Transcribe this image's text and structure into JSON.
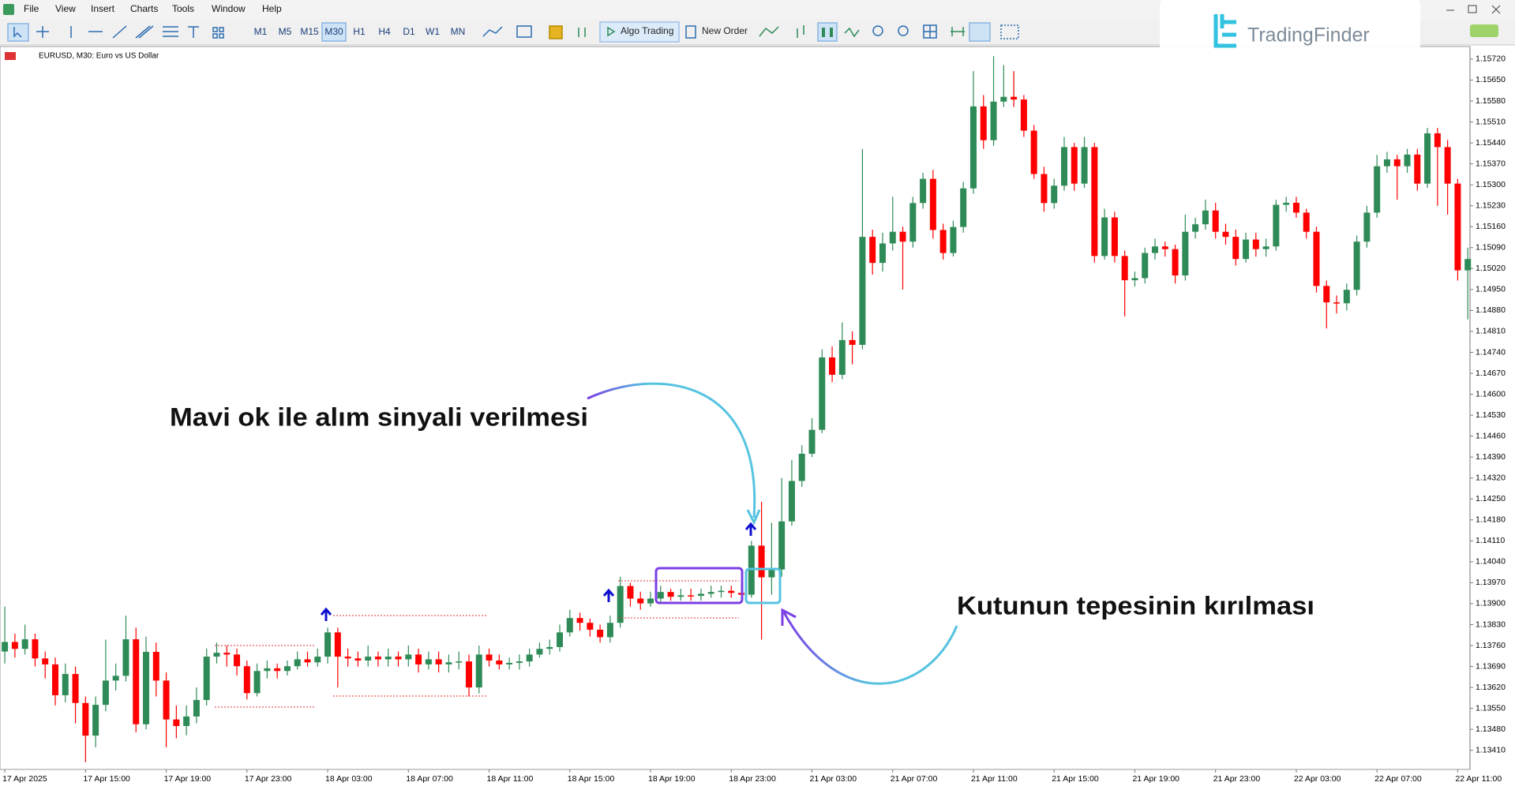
{
  "menu": [
    "File",
    "View",
    "Insert",
    "Charts",
    "Tools",
    "Window",
    "Help"
  ],
  "toolbar": {
    "timeframes": [
      "M1",
      "M5",
      "M15",
      "M30",
      "H1",
      "H4",
      "D1",
      "W1",
      "MN"
    ],
    "algo_trading": "Algo Trading",
    "new_order": "New Order"
  },
  "logo": "TradingFinder",
  "chart_data": {
    "type": "candlestick",
    "title": "EURUSD, M30:  Euro vs US Dollar",
    "annotations": [
      "Mavi ok ile alım sinyali verilmesi",
      "Kutunun tepesinin kırılması"
    ],
    "up_color": "#2e8b57",
    "down_color": "#ff0000",
    "grid": false,
    "ylim": [
      1.13346,
      1.15762
    ],
    "yticks": [
      {
        "value": 1.1572,
        "label": "1.15720"
      },
      {
        "value": 1.1565,
        "label": "1.15650"
      },
      {
        "value": 1.1558,
        "label": "1.15580"
      },
      {
        "value": 1.1551,
        "label": "1.15510"
      },
      {
        "value": 1.1544,
        "label": "1.15440"
      },
      {
        "value": 1.1537,
        "label": "1.15370"
      },
      {
        "value": 1.153,
        "label": "1.15300"
      },
      {
        "value": 1.1523,
        "label": "1.15230"
      },
      {
        "value": 1.1516,
        "label": "1.15160"
      },
      {
        "value": 1.1509,
        "label": "1.15090"
      },
      {
        "value": 1.1502,
        "label": "1.15020"
      },
      {
        "value": 1.1495,
        "label": "1.14950"
      },
      {
        "value": 1.1488,
        "label": "1.14880"
      },
      {
        "value": 1.1481,
        "label": "1.14810"
      },
      {
        "value": 1.1474,
        "label": "1.14740"
      },
      {
        "value": 1.1467,
        "label": "1.14670"
      },
      {
        "value": 1.146,
        "label": "1.14600"
      },
      {
        "value": 1.1453,
        "label": "1.14530"
      },
      {
        "value": 1.1446,
        "label": "1.14460"
      },
      {
        "value": 1.1439,
        "label": "1.14390"
      },
      {
        "value": 1.1432,
        "label": "1.14320"
      },
      {
        "value": 1.1425,
        "label": "1.14250"
      },
      {
        "value": 1.1418,
        "label": "1.14180"
      },
      {
        "value": 1.1411,
        "label": "1.14110"
      },
      {
        "value": 1.1404,
        "label": "1.14040"
      },
      {
        "value": 1.1397,
        "label": "1.13970"
      },
      {
        "value": 1.139,
        "label": "1.13900"
      },
      {
        "value": 1.1383,
        "label": "1.13830"
      },
      {
        "value": 1.1376,
        "label": "1.13760"
      },
      {
        "value": 1.1369,
        "label": "1.13690"
      },
      {
        "value": 1.1362,
        "label": "1.13620"
      },
      {
        "value": 1.1355,
        "label": "1.13550"
      },
      {
        "value": 1.1348,
        "label": "1.13480"
      },
      {
        "value": 1.1341,
        "label": "1.13410"
      }
    ],
    "categories": [
      "17 Apr 2025",
      null,
      null,
      null,
      null,
      null,
      null,
      null,
      "17 Apr 15:00",
      null,
      null,
      null,
      null,
      null,
      null,
      null,
      "17 Apr 19:00",
      null,
      null,
      null,
      null,
      null,
      null,
      null,
      "17 Apr 23:00",
      null,
      null,
      null,
      null,
      null,
      null,
      null,
      "18 Apr 03:00",
      null,
      null,
      null,
      null,
      null,
      null,
      null,
      "18 Apr 07:00",
      null,
      null,
      null,
      null,
      null,
      null,
      null,
      "18 Apr 11:00",
      null,
      null,
      null,
      null,
      null,
      null,
      null,
      "18 Apr 15:00",
      null,
      null,
      null,
      null,
      null,
      null,
      null,
      "18 Apr 19:00",
      null,
      null,
      null,
      null,
      null,
      null,
      null,
      "18 Apr 23:00",
      null,
      null,
      null,
      null,
      null,
      null,
      null,
      "21 Apr 03:00",
      null,
      null,
      null,
      null,
      null,
      null,
      null,
      "21 Apr 07:00",
      null,
      null,
      null,
      null,
      null,
      null,
      null,
      "21 Apr 11:00",
      null,
      null,
      null,
      null,
      null,
      null,
      null,
      "21 Apr 15:00",
      null,
      null,
      null,
      null,
      null,
      null,
      null,
      "21 Apr 19:00",
      null,
      null,
      null,
      null,
      null,
      null,
      null,
      "21 Apr 23:00",
      null,
      null,
      null,
      null,
      null,
      null,
      null,
      "22 Apr 03:00",
      null,
      null,
      null,
      null,
      null,
      null,
      null,
      "22 Apr 07:00",
      null,
      null,
      null,
      null,
      null,
      null,
      null,
      "22 Apr 11:00",
      null
    ],
    "open": [
      1.1374,
      1.13772,
      1.13749,
      1.13781,
      1.13717,
      1.13697,
      1.13594,
      1.13665,
      1.13568,
      1.13459,
      1.13562,
      1.13643,
      1.13659,
      1.13781,
      1.13497,
      1.13739,
      1.13643,
      1.13513,
      1.13491,
      1.13523,
      1.13578,
      1.13723,
      1.13736,
      1.1373,
      1.13691,
      1.13601,
      1.13675,
      1.13684,
      1.13675,
      1.13691,
      1.13714,
      1.13704,
      1.13723,
      1.13804,
      1.13723,
      1.13717,
      1.1371,
      1.13723,
      1.13714,
      1.13723,
      1.13714,
      1.1373,
      1.13697,
      1.13714,
      1.13697,
      1.13704,
      1.13707,
      1.1362,
      1.1373,
      1.1371,
      1.13697,
      1.13702,
      1.13707,
      1.1373,
      1.13749,
      1.13755,
      1.13804,
      1.13852,
      1.13836,
      1.13813,
      1.13788,
      1.13836,
      1.13959,
      1.13917,
      1.13901,
      1.13917,
      1.13939,
      1.13923,
      1.13928,
      1.13926,
      1.13933,
      1.13939,
      1.13943,
      1.13936,
      1.1393,
      1.14094,
      1.13988,
      1.14014,
      1.14175,
      1.1431,
      1.14401,
      1.14481,
      1.14723,
      1.14665,
      1.14781,
      1.14765,
      1.15126,
      1.15039,
      1.15104,
      1.15143,
      1.1511,
      1.15239,
      1.1532,
      1.15149,
      1.15072,
      1.15159,
      1.15288,
      1.15562,
      1.15449,
      1.15578,
      1.15594,
      1.15585,
      1.15481,
      1.15336,
      1.15239,
      1.15297,
      1.15426,
      1.15304,
      1.15426,
      1.15062,
      1.15191,
      1.15062,
      1.14981,
      1.14988,
      1.15072,
      1.15094,
      1.15085,
      1.14997,
      1.15143,
      1.15168,
      1.15214,
      1.15143,
      1.15126,
      1.15052,
      1.15117,
      1.15085,
      1.15094,
      1.15233,
      1.1524,
      1.15207,
      1.15143,
      1.14962,
      1.14907,
      1.14904,
      1.14949,
      1.1511,
      1.15207,
      1.15362,
      1.15385,
      1.15362,
      1.15401,
      1.15304,
      1.15472,
      1.15426,
      1.15304,
      1.15014
    ],
    "high": [
      1.1389,
      1.138,
      1.1383,
      1.138,
      1.1374,
      1.1372,
      1.137,
      1.1369,
      1.1359,
      1.1359,
      1.1378,
      1.137,
      1.1386,
      1.1382,
      1.1379,
      1.1377,
      1.1367,
      1.1356,
      1.1356,
      1.1362,
      1.1375,
      1.1377,
      1.1376,
      1.1375,
      1.1371,
      1.137,
      1.1371,
      1.137,
      1.1371,
      1.1374,
      1.1374,
      1.1375,
      1.1382,
      1.1382,
      1.1375,
      1.1374,
      1.1376,
      1.1374,
      1.1375,
      1.1374,
      1.1376,
      1.1375,
      1.1374,
      1.1374,
      1.1373,
      1.1374,
      1.1373,
      1.1376,
      1.1375,
      1.1373,
      1.1372,
      1.1373,
      1.1375,
      1.1377,
      1.1378,
      1.1383,
      1.1388,
      1.1387,
      1.1385,
      1.1383,
      1.1386,
      1.1399,
      1.1397,
      1.1394,
      1.1394,
      1.1396,
      1.1395,
      1.1395,
      1.1395,
      1.1395,
      1.1396,
      1.1396,
      1.1396,
      1.1396,
      1.1411,
      1.1424,
      1.1417,
      1.1432,
      1.1438,
      1.1443,
      1.1452,
      1.1475,
      1.1476,
      1.1484,
      1.1481,
      1.1542,
      1.1515,
      1.1514,
      1.1526,
      1.1516,
      1.1526,
      1.1534,
      1.1535,
      1.1517,
      1.1518,
      1.1531,
      1.1568,
      1.156,
      1.1573,
      1.157,
      1.1568,
      1.156,
      1.155,
      1.1536,
      1.1532,
      1.1546,
      1.1544,
      1.1546,
      1.1544,
      1.1522,
      1.1521,
      1.1508,
      1.1501,
      1.1509,
      1.1512,
      1.1511,
      1.151,
      1.152,
      1.1519,
      1.1525,
      1.1524,
      1.1517,
      1.1515,
      1.1514,
      1.1514,
      1.1512,
      1.1525,
      1.1526,
      1.1526,
      1.1522,
      1.1516,
      1.1498,
      1.1493,
      1.1497,
      1.1513,
      1.1523,
      1.154,
      1.1541,
      1.154,
      1.1542,
      1.1542,
      1.1549,
      1.1549,
      1.1545,
      1.1532,
      1.1509
    ],
    "low": [
      1.137,
      1.1372,
      1.1373,
      1.1369,
      1.1365,
      1.1356,
      1.1357,
      1.135,
      1.1337,
      1.1342,
      1.1354,
      1.1361,
      1.1364,
      1.1347,
      1.1348,
      1.1359,
      1.1342,
      1.1345,
      1.1346,
      1.135,
      1.1356,
      1.137,
      1.1369,
      1.1366,
      1.1358,
      1.1359,
      1.1365,
      1.1365,
      1.1366,
      1.1368,
      1.1369,
      1.1369,
      1.137,
      1.1362,
      1.1369,
      1.1369,
      1.1369,
      1.1369,
      1.1369,
      1.1369,
      1.1369,
      1.1367,
      1.1368,
      1.1367,
      1.1367,
      1.1368,
      1.1359,
      1.136,
      1.1369,
      1.1368,
      1.1368,
      1.1368,
      1.1369,
      1.1372,
      1.1373,
      1.1374,
      1.1379,
      1.1381,
      1.1379,
      1.1377,
      1.1377,
      1.1382,
      1.1389,
      1.1388,
      1.1389,
      1.139,
      1.1391,
      1.1391,
      1.1391,
      1.1391,
      1.1392,
      1.1392,
      1.1392,
      1.1391,
      1.1392,
      1.1378,
      1.1393,
      1.1399,
      1.1416,
      1.1429,
      1.1439,
      1.1447,
      1.1464,
      1.1465,
      1.147,
      1.1475,
      1.15,
      1.1501,
      1.1508,
      1.1495,
      1.1509,
      1.1522,
      1.1512,
      1.1505,
      1.1506,
      1.1514,
      1.1527,
      1.1542,
      1.1543,
      1.1556,
      1.1556,
      1.1546,
      1.1532,
      1.1521,
      1.1522,
      1.1528,
      1.1528,
      1.1529,
      1.1504,
      1.1505,
      1.1504,
      1.1486,
      1.1496,
      1.1497,
      1.1505,
      1.1506,
      1.1497,
      1.1498,
      1.1512,
      1.1515,
      1.1512,
      1.151,
      1.1503,
      1.1504,
      1.1506,
      1.1506,
      1.1508,
      1.1521,
      1.1519,
      1.1512,
      1.1494,
      1.1482,
      1.1487,
      1.1488,
      1.1493,
      1.1509,
      1.1519,
      1.1534,
      1.1525,
      1.1534,
      1.1528,
      1.1529,
      1.1523,
      1.152,
      1.1498,
      1.1485
    ],
    "close": [
      1.13772,
      1.13749,
      1.13781,
      1.13717,
      1.13697,
      1.13594,
      1.13665,
      1.13568,
      1.13459,
      1.13562,
      1.13643,
      1.13659,
      1.13781,
      1.13497,
      1.13739,
      1.13643,
      1.13513,
      1.13491,
      1.13523,
      1.13578,
      1.13723,
      1.13736,
      1.1373,
      1.13691,
      1.13601,
      1.13675,
      1.13684,
      1.13675,
      1.13691,
      1.13714,
      1.13704,
      1.13723,
      1.13804,
      1.13723,
      1.13717,
      1.1371,
      1.13723,
      1.13714,
      1.13723,
      1.13714,
      1.1373,
      1.13697,
      1.13714,
      1.13697,
      1.13704,
      1.13707,
      1.1362,
      1.1373,
      1.1371,
      1.13697,
      1.13702,
      1.13707,
      1.1373,
      1.13749,
      1.13755,
      1.13804,
      1.13852,
      1.13836,
      1.13813,
      1.13788,
      1.13836,
      1.13959,
      1.13917,
      1.13901,
      1.13917,
      1.13939,
      1.13923,
      1.13928,
      1.13926,
      1.13933,
      1.13939,
      1.13943,
      1.13936,
      1.1393,
      1.14094,
      1.13988,
      1.14014,
      1.14175,
      1.1431,
      1.14401,
      1.14481,
      1.14723,
      1.14665,
      1.14781,
      1.14765,
      1.15126,
      1.15039,
      1.15104,
      1.15143,
      1.1511,
      1.15239,
      1.1532,
      1.15149,
      1.15072,
      1.15159,
      1.15288,
      1.15562,
      1.15449,
      1.15578,
      1.15594,
      1.15585,
      1.15481,
      1.15336,
      1.15239,
      1.15297,
      1.15426,
      1.15304,
      1.15426,
      1.15062,
      1.15191,
      1.15062,
      1.14981,
      1.14988,
      1.15072,
      1.15094,
      1.15085,
      1.14997,
      1.15143,
      1.15168,
      1.15214,
      1.15143,
      1.15126,
      1.15052,
      1.15117,
      1.15085,
      1.15094,
      1.15233,
      1.1524,
      1.15207,
      1.15143,
      1.14962,
      1.14907,
      1.14904,
      1.14949,
      1.1511,
      1.15207,
      1.15362,
      1.15385,
      1.15362,
      1.15401,
      1.15304,
      1.15472,
      1.15426,
      1.15304,
      1.15014,
      1.15052
    ]
  }
}
